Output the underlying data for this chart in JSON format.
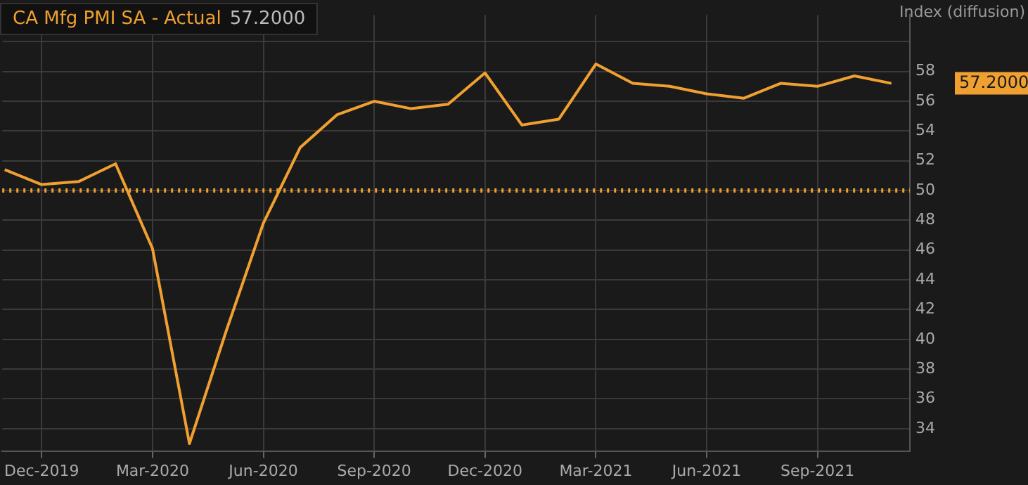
{
  "chart_data": {
    "type": "line",
    "title": "CA Mfg PMI SA - Actual",
    "subtitle": "57.2000",
    "ylabel": "Index (diffusion)",
    "x": [
      "2019-11-01",
      "2019-12-01",
      "2020-01-01",
      "2020-02-01",
      "2020-03-01",
      "2020-04-01",
      "2020-05-01",
      "2020-06-01",
      "2020-07-01",
      "2020-08-01",
      "2020-09-01",
      "2020-10-01",
      "2020-11-01",
      "2020-12-01",
      "2021-01-01",
      "2021-02-01",
      "2021-03-01",
      "2021-04-01",
      "2021-05-01",
      "2021-06-01",
      "2021-07-01",
      "2021-08-01",
      "2021-09-01",
      "2021-10-01",
      "2021-11-01"
    ],
    "series": [
      {
        "color": "#f0a030",
        "values": [
          51.4,
          50.4,
          50.6,
          51.8,
          46.1,
          33.0,
          40.6,
          47.8,
          52.9,
          55.1,
          56.0,
          55.5,
          55.8,
          57.9,
          54.4,
          54.8,
          58.5,
          57.2,
          57.0,
          56.5,
          56.2,
          57.2,
          57.0,
          57.7,
          57.2
        ]
      }
    ],
    "annotations": [
      "57.2000"
    ],
    "xlim": [
      "2019-10-29",
      "2021-11-16"
    ],
    "xticks": [
      {
        "value": "2019-12-01",
        "label": "Dec-2019"
      },
      {
        "value": "2020-03-01",
        "label": "Mar-2020"
      },
      {
        "value": "2020-06-01",
        "label": "Jun-2020"
      },
      {
        "value": "2020-09-01",
        "label": "Sep-2020"
      },
      {
        "value": "2020-12-01",
        "label": "Dec-2020"
      },
      {
        "value": "2021-03-01",
        "label": "Mar-2021"
      },
      {
        "value": "2021-06-01",
        "label": "Jun-2021"
      },
      {
        "value": "2021-09-01",
        "label": "Sep-2021"
      }
    ],
    "ylim": [
      32.5,
      61.8
    ],
    "yticks": [
      34,
      36,
      38,
      40,
      42,
      44,
      46,
      48,
      50,
      52,
      54,
      56,
      58,
      {
        "value": 60,
        "label": null
      }
    ],
    "ref_lines": [
      {
        "axis": "y",
        "value": 50,
        "color": "#f0a030",
        "line_style": "dotted"
      }
    ],
    "grid": true,
    "legend": false,
    "marker": "none",
    "line_style": "solid"
  }
}
